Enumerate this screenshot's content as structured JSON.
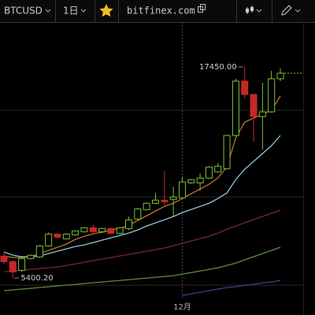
{
  "toolbar": {
    "symbol": "BTCUSD",
    "interval": "1日",
    "site": "bitfinex.com"
  },
  "chart_data": {
    "type": "candlestick",
    "categories": [
      null,
      null,
      null,
      null,
      null,
      null,
      null,
      null,
      null,
      null,
      null,
      null,
      null,
      null,
      null,
      null,
      null,
      null,
      null,
      null,
      "12月",
      null,
      null,
      null,
      null,
      null,
      null,
      null,
      null,
      null,
      null,
      null
    ],
    "candles": {
      "open": [
        6650,
        6335,
        5840,
        6515,
        6605,
        7235,
        7910,
        7640,
        7865,
        8045,
        8270,
        8045,
        8225,
        7955,
        8225,
        8765,
        9305,
        9665,
        9845,
        9890,
        9980,
        10835,
        10835,
        11105,
        11465,
        11645,
        13535,
        16640,
        15875,
        14615,
        14885,
        16775
      ],
      "high": [
        6875,
        6425,
        6650,
        6740,
        7280,
        8000,
        7955,
        7955,
        8135,
        8315,
        8450,
        8270,
        8270,
        8315,
        8900,
        9400,
        9710,
        10250,
        11510,
        10610,
        11150,
        11060,
        11375,
        11780,
        11960,
        13580,
        16775,
        17450,
        15920,
        16550,
        17225,
        17360
      ],
      "low": [
        6200,
        5400.2,
        5750,
        6470,
        6560,
        7190,
        7690,
        7600,
        7820,
        8000,
        7865,
        8000,
        7910,
        7910,
        8135,
        8720,
        9260,
        9620,
        9485,
        8900,
        9935,
        10790,
        10385,
        11060,
        11420,
        11600,
        13490,
        15650,
        13175,
        12725,
        14840,
        16640
      ],
      "close": [
        6335,
        5750,
        6515,
        6695,
        7235,
        7910,
        7730,
        7910,
        8090,
        8270,
        8045,
        8225,
        7955,
        8270,
        8720,
        9350,
        9665,
        9845,
        9755,
        10025,
        10880,
        11015,
        11105,
        11735,
        11780,
        13535,
        16640,
        15875,
        14615,
        14885,
        16775,
        17090
      ]
    },
    "up_color": "#7ec236",
    "down_color": "#c62828",
    "lines": [
      {
        "color": "#b8742a",
        "values": [
          6660,
          6570,
          6570,
          6615,
          6795,
          6975,
          7155,
          7335,
          7605,
          7785,
          7920,
          8010,
          8145,
          8235,
          8415,
          8685,
          8955,
          9225,
          9490,
          9670,
          9940,
          10210,
          10480,
          10750,
          11110,
          11740,
          13400,
          14300,
          14525,
          14750,
          14975,
          15785
        ]
      },
      {
        "color": "#8fc4d8",
        "values": [
          6885,
          6705,
          6615,
          6615,
          6660,
          6795,
          6930,
          7065,
          7200,
          7290,
          7425,
          7560,
          7695,
          7830,
          7965,
          8145,
          8370,
          8550,
          8730,
          8910,
          9135,
          9315,
          9490,
          9670,
          9940,
          10255,
          11020,
          11605,
          12055,
          12505,
          12955,
          13540
        ]
      },
      {
        "color": "#7a2626",
        "values": [
          5760,
          5805,
          5850,
          5895,
          5940,
          5985,
          6030,
          6120,
          6210,
          6300,
          6390,
          6480,
          6570,
          6660,
          6750,
          6840,
          6930,
          7020,
          7110,
          7245,
          7380,
          7515,
          7650,
          7785,
          7965,
          8190,
          8370,
          8555,
          8735,
          8915,
          9095,
          9270
        ]
      },
      {
        "color": "#5e8c44",
        "values": [
          4680,
          4725,
          4770,
          4815,
          4860,
          4905,
          4950,
          4995,
          5040,
          5085,
          5130,
          5175,
          5220,
          5265,
          5310,
          5355,
          5400,
          5445,
          5490,
          5535,
          5625,
          5715,
          5805,
          5895,
          5985,
          6120,
          6255,
          6435,
          6615,
          6795,
          6975,
          7155
        ]
      },
      {
        "color": "#36438e",
        "values": [
          null,
          null,
          null,
          null,
          null,
          null,
          null,
          null,
          null,
          null,
          null,
          null,
          null,
          null,
          null,
          null,
          null,
          null,
          null,
          null,
          4410,
          4500,
          4590,
          4680,
          4770,
          4860,
          4905,
          4995,
          5040,
          5130,
          5175,
          5265
        ]
      }
    ],
    "annotations": [
      {
        "text": "17450.00",
        "value": 17450
      },
      {
        "text": "5400.20",
        "value": 5400.2
      }
    ],
    "ylim": [
      4190,
      20010
    ],
    "yticks": [
      14975,
      10030,
      4995
    ],
    "grid": true
  }
}
